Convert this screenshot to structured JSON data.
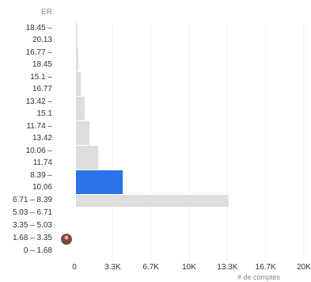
{
  "chart_data": {
    "type": "bar",
    "orientation": "horizontal",
    "y_axis_title": "ER",
    "x_axis_title": "# de comptes",
    "categories": [
      "18.45 – 20.13",
      "16.77 – 18.45",
      "15.1 – 16.77",
      "13.42 – 15.1",
      "11.74 – 13.42",
      "10.06 – 11.74",
      "8.39 – 10.06",
      "6.71 – 8.39",
      "5.03 – 6.71",
      "3.35 – 5.03",
      "1.68 – 3.35",
      "0 – 1.68"
    ],
    "values": [
      100,
      210,
      415,
      760,
      1180,
      1940,
      4080,
      13290,
      0,
      0,
      0,
      0
    ],
    "colors": [
      "#dedede",
      "#dedede",
      "#dedede",
      "#dedede",
      "#dedede",
      "#dedede",
      "#2b73e8",
      "#dedede",
      "#dedede",
      "#dedede",
      "#dedede",
      "#dedede"
    ],
    "xlim": [
      0,
      20000
    ],
    "xticks": [
      0,
      {
        "value": 3333,
        "label": "3.3K"
      },
      {
        "value": 6667,
        "label": "6.7K"
      },
      {
        "value": 10000,
        "label": "10K"
      },
      {
        "value": 13333,
        "label": "13.3K"
      },
      {
        "value": 16667,
        "label": "16.7K"
      },
      {
        "value": 20000,
        "label": "20K"
      }
    ],
    "grid": true
  }
}
